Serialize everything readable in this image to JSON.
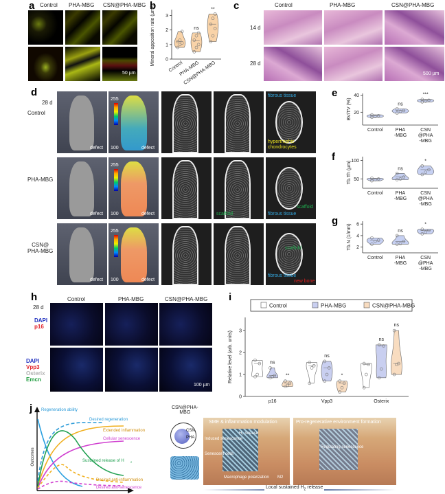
{
  "panels": {
    "a": "a",
    "b": "b",
    "c": "c",
    "d": "d",
    "e": "e",
    "f": "f",
    "g": "g",
    "h": "h",
    "i": "i",
    "j": "j"
  },
  "a": {
    "cols": [
      "Control",
      "PHA-MBG",
      "CSN@PHA-MBG"
    ],
    "scale": "50 µm"
  },
  "c": {
    "cols": [
      "Control",
      "PHA-MBG",
      "CSN@PHA-MBG"
    ],
    "rows": [
      "14 d",
      "28 d"
    ],
    "scale": "500 µm"
  },
  "d": {
    "time": "28 d",
    "rows": [
      "Control",
      "PHA-MBG",
      "CSN@\nPHA-MBG"
    ],
    "defect": "defect",
    "cbar_max": "255",
    "cbar_min": "100",
    "ann": {
      "fibrous1": "fibrous tissue",
      "hyper": "hypertrophic chondrocytes",
      "scaffold": "scaffold",
      "fibrous2": "fibrous tissue",
      "scaffold2": "scaffold",
      "fibrous3": "fibrous tissue",
      "scaffold3": "scaffold",
      "new_bone": "new bone"
    }
  },
  "h": {
    "time": "28 d",
    "cols": [
      "Control",
      "PHA-MBG",
      "CSN@PHA-MBG"
    ],
    "row1": [
      "DAPI",
      "p16"
    ],
    "row2": [
      "DAPI",
      "Vpp3",
      "Osterix",
      "Emcn"
    ],
    "scale": "100 µm"
  },
  "colors": {
    "control": "#ffffff",
    "pha": "#c9cff0",
    "csn": "#f8dcc0",
    "b_fill": "#f9d3a8",
    "efg_fill": "#c6d0f2",
    "p16": "#e0202a",
    "vpp3": "#e0202a",
    "osterix": "#cfcfcf",
    "emcn": "#1a9a3a",
    "dapi": "#2030c0"
  },
  "chart_data": [
    {
      "id": "b",
      "type": "violin",
      "ylabel": "Mineral apposition rate (µm/d)",
      "categories": [
        "Control",
        "PHA-MBG",
        "CSN@PHA-MBG"
      ],
      "yticks": [
        0,
        1,
        2,
        3
      ],
      "ylim": [
        0,
        3.4
      ],
      "series": [
        {
          "values": [
            0.8,
            1.0,
            1.1,
            1.2,
            1.3,
            1.9
          ]
        },
        {
          "values": [
            0.5,
            0.8,
            1.0,
            1.3,
            1.6,
            1.8
          ]
        },
        {
          "values": [
            1.2,
            1.6,
            2.1,
            2.4,
            2.8,
            3.1
          ]
        }
      ],
      "sig": [
        "",
        "ns",
        "**"
      ]
    },
    {
      "id": "e",
      "type": "violin",
      "ylabel": "BV/TV (%)",
      "categories": [
        "Control",
        "PHA\n-MBG",
        "CSN\n@PHA\n-MBG"
      ],
      "yticks": [
        20,
        40
      ],
      "ylim": [
        5,
        42
      ],
      "series": [
        {
          "values": [
            14,
            15,
            16,
            17
          ]
        },
        {
          "values": [
            19,
            21,
            22,
            24
          ]
        },
        {
          "values": [
            32,
            33,
            34,
            35
          ]
        }
      ],
      "sig": [
        "",
        "ns",
        "***"
      ]
    },
    {
      "id": "f",
      "type": "violin",
      "ylabel": "Tb.Th (µm)",
      "categories": [
        "Control",
        "PHA\n-MBG",
        "CSN\n@PHA\n-MBG"
      ],
      "yticks": [
        50,
        100
      ],
      "ylim": [
        25,
        110
      ],
      "series": [
        {
          "values": [
            45,
            48,
            50,
            52
          ]
        },
        {
          "values": [
            48,
            50,
            55,
            65
          ]
        },
        {
          "values": [
            62,
            68,
            75,
            85
          ]
        }
      ],
      "sig": [
        "",
        "ns",
        "*"
      ]
    },
    {
      "id": "g",
      "type": "violin",
      "ylabel": "Tb.N (1/mm)",
      "categories": [
        "Control",
        "PHA\n-MBG",
        "CSN\n@PHA\n-MBG"
      ],
      "yticks": [
        2,
        4,
        6
      ],
      "ylim": [
        1,
        6.5
      ],
      "series": [
        {
          "values": [
            2.5,
            3.0,
            3.2,
            3.6
          ]
        },
        {
          "values": [
            2.5,
            2.6,
            3.0,
            4.0
          ]
        },
        {
          "values": [
            4.3,
            4.6,
            4.9,
            5.1
          ]
        }
      ],
      "sig": [
        "",
        "ns",
        "*"
      ]
    },
    {
      "id": "i",
      "type": "violin",
      "ylabel": "Relative level (arb. units)",
      "categories": [
        "p16",
        "Vpp3",
        "Osterix"
      ],
      "yticks": [
        0,
        1,
        2,
        3
      ],
      "ylim": [
        0,
        3.6
      ],
      "legend": [
        "Control",
        "PHA-MBG",
        "CSN@PHA-MBG"
      ],
      "legend_position": "top",
      "series": [
        {
          "name": "Control",
          "values": [
            [
              0.9,
              1.0,
              1.5,
              1.65
            ],
            [
              0.6,
              1.3,
              1.4,
              1.55
            ],
            [
              0.4,
              1.0,
              1.45,
              1.5
            ]
          ]
        },
        {
          "name": "PHA-MBG",
          "values": [
            [
              0.85,
              0.9,
              0.95,
              1.3
            ],
            [
              0.7,
              1.0,
              1.3,
              1.6
            ],
            [
              0.85,
              1.25,
              2.3,
              2.35
            ]
          ]
        },
        {
          "name": "CSN@PHA-MBG",
          "values": [
            [
              0.45,
              0.5,
              0.6,
              0.7
            ],
            [
              0.2,
              0.4,
              0.6,
              0.7
            ],
            [
              1.0,
              1.45,
              1.5,
              3.0
            ]
          ]
        }
      ],
      "sig": [
        [
          "",
          "ns",
          "**"
        ],
        [
          "",
          "ns",
          "*"
        ],
        [
          "",
          "ns",
          "ns"
        ]
      ]
    }
  ],
  "j": {
    "ylabel": "Outcomes",
    "xlabel": "Time",
    "curves": {
      "regen_ability": "Regeneration ability",
      "desired_regen": "Desired regeneration",
      "ext_infl": "Extended inflammation",
      "cell_sen": "Cellular senescence",
      "h2": "Sustained release of H",
      "h2_sub": "2",
      "des_anti_infl": "Desired anti-inflammation",
      "des_anti_sen": "Desired anti-senescence"
    },
    "material": "CSN@PHA-\nMBG",
    "csn": "CSN",
    "pha": "PHA",
    "panel1": {
      "title": "SME & inflammation modulation",
      "l1": "Induced senescence",
      "l2": "H₂ release",
      "l3": "Senescent cells",
      "l4": "Macrophage polarization",
      "l5": "M2"
    },
    "panel2": {
      "title": "Pro-regenerative environment formation",
      "l1": "Regulating senescence"
    },
    "bottom": "Local sustained H",
    "bottom_sub": "2",
    "bottom_tail": " release"
  }
}
